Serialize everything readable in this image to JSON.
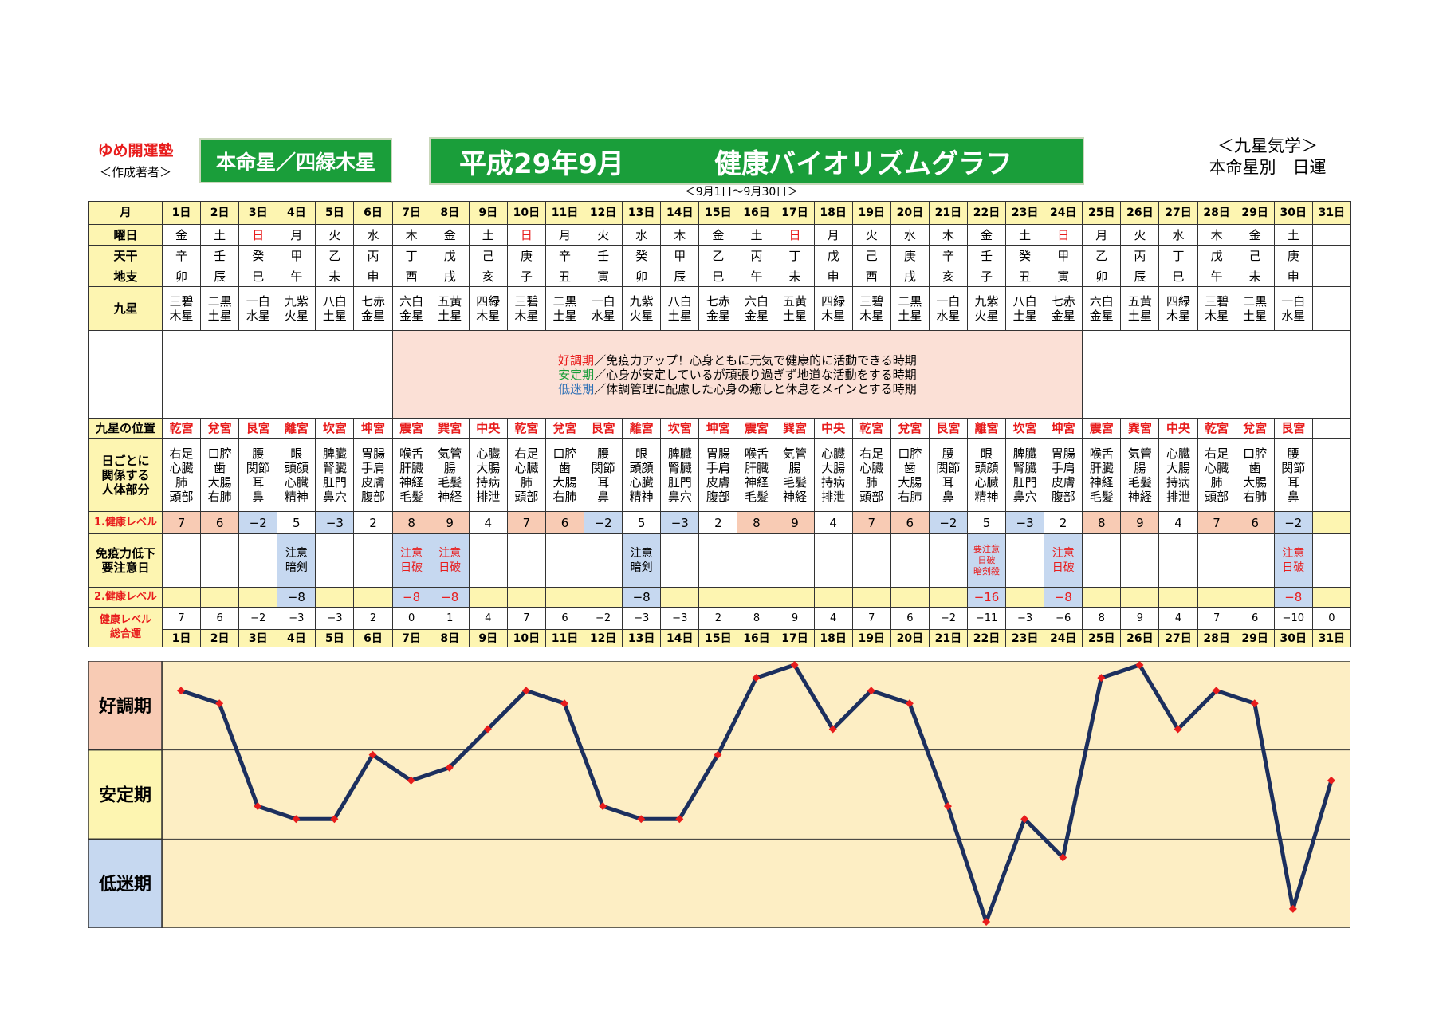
{
  "header": {
    "org_name": "ゆめ開運塾",
    "author_note": "＜作成著者＞",
    "honmei_sei": "本命星／四緑木星",
    "title_ym": "平成29年9月",
    "title_text": "健康バイオリズムグラフ",
    "period": "＜9月1日～9月30日＞",
    "kyusei_line1": "＜九星気学＞",
    "kyusei_line2": "本命星別　日運"
  },
  "colors": {
    "green": "#1a9e3a",
    "red": "#e81c1c",
    "pink": "#f8cbb4",
    "light_blue": "#c6d8f0",
    "yellow": "#fdf5b1",
    "line": "#1c2f5e",
    "marker": "#e81c1c"
  },
  "labels": {
    "month": "月",
    "weekday": "曜日",
    "tenkan": "天干",
    "chishi": "地支",
    "kyusei": "九星",
    "position": "九星の位置",
    "body_part_1": "日ごとに",
    "body_part_2": "関係する",
    "body_part_3": "人体部分",
    "health1": "1.健康レベル",
    "caution_1": "免疫力低下",
    "caution_2": "要注意日",
    "health2": "2.健康レベル",
    "total_1": "健康レベル",
    "total_2": "総合運"
  },
  "legend": [
    {
      "term": "好調期",
      "text": "／免疫力アップ！心身ともに元気で健康的に活動できる時期",
      "color": "#e81c1c"
    },
    {
      "term": "安定期",
      "text": "／心身が安定しているが頑張り過ぎず地道な活動をする時期",
      "color": "#1a9e3a"
    },
    {
      "term": "低迷期",
      "text": "／体調管理に配慮した心身の癒しと休息をメインとする時期",
      "color": "#2d6fb5"
    }
  ],
  "days": [
    "1日",
    "2日",
    "3日",
    "4日",
    "5日",
    "6日",
    "7日",
    "8日",
    "9日",
    "10日",
    "11日",
    "12日",
    "13日",
    "14日",
    "15日",
    "16日",
    "17日",
    "18日",
    "19日",
    "20日",
    "21日",
    "22日",
    "23日",
    "24日",
    "25日",
    "26日",
    "27日",
    "28日",
    "29日",
    "30日",
    "31日"
  ],
  "weekdays": [
    "金",
    "土",
    "日",
    "月",
    "火",
    "水",
    "木",
    "金",
    "土",
    "日",
    "月",
    "火",
    "水",
    "木",
    "金",
    "土",
    "日",
    "月",
    "火",
    "水",
    "木",
    "金",
    "土",
    "日",
    "月",
    "火",
    "水",
    "木",
    "金",
    "土",
    ""
  ],
  "tenkan": [
    "辛",
    "壬",
    "癸",
    "甲",
    "乙",
    "丙",
    "丁",
    "戊",
    "己",
    "庚",
    "辛",
    "壬",
    "癸",
    "甲",
    "乙",
    "丙",
    "丁",
    "戊",
    "己",
    "庚",
    "辛",
    "壬",
    "癸",
    "甲",
    "乙",
    "丙",
    "丁",
    "戊",
    "己",
    "庚",
    ""
  ],
  "chishi": [
    "卯",
    "辰",
    "巳",
    "午",
    "未",
    "申",
    "酉",
    "戌",
    "亥",
    "子",
    "丑",
    "寅",
    "卯",
    "辰",
    "巳",
    "午",
    "未",
    "申",
    "酉",
    "戌",
    "亥",
    "子",
    "丑",
    "寅",
    "卯",
    "辰",
    "巳",
    "午",
    "未",
    "申",
    ""
  ],
  "kyusei": [
    [
      "三碧",
      "木星"
    ],
    [
      "二黒",
      "土星"
    ],
    [
      "一白",
      "水星"
    ],
    [
      "九紫",
      "火星"
    ],
    [
      "八白",
      "土星"
    ],
    [
      "七赤",
      "金星"
    ],
    [
      "六白",
      "金星"
    ],
    [
      "五黄",
      "土星"
    ],
    [
      "四緑",
      "木星"
    ],
    [
      "三碧",
      "木星"
    ],
    [
      "二黒",
      "土星"
    ],
    [
      "一白",
      "水星"
    ],
    [
      "九紫",
      "火星"
    ],
    [
      "八白",
      "土星"
    ],
    [
      "七赤",
      "金星"
    ],
    [
      "六白",
      "金星"
    ],
    [
      "五黄",
      "土星"
    ],
    [
      "四緑",
      "木星"
    ],
    [
      "三碧",
      "木星"
    ],
    [
      "二黒",
      "土星"
    ],
    [
      "一白",
      "水星"
    ],
    [
      "九紫",
      "火星"
    ],
    [
      "八白",
      "土星"
    ],
    [
      "七赤",
      "金星"
    ],
    [
      "六白",
      "金星"
    ],
    [
      "五黄",
      "土星"
    ],
    [
      "四緑",
      "木星"
    ],
    [
      "三碧",
      "木星"
    ],
    [
      "二黒",
      "土星"
    ],
    [
      "一白",
      "水星"
    ],
    [
      "",
      ""
    ]
  ],
  "positions": [
    "乾宮",
    "兌宮",
    "艮宮",
    "離宮",
    "坎宮",
    "坤宮",
    "震宮",
    "巽宮",
    "中央",
    "乾宮",
    "兌宮",
    "艮宮",
    "離宮",
    "坎宮",
    "坤宮",
    "震宮",
    "巽宮",
    "中央",
    "乾宮",
    "兌宮",
    "艮宮",
    "離宮",
    "坎宮",
    "坤宮",
    "震宮",
    "巽宮",
    "中央",
    "乾宮",
    "兌宮",
    "艮宮",
    ""
  ],
  "body_parts": [
    [
      "右足",
      "心臓",
      "肺",
      "頭部"
    ],
    [
      "口腔",
      "歯",
      "大腸",
      "右肺"
    ],
    [
      "腰",
      "関節",
      "耳",
      "鼻"
    ],
    [
      "眼",
      "頭顔",
      "心臓",
      "精神"
    ],
    [
      "脾臓",
      "腎臓",
      "肛門",
      "鼻穴"
    ],
    [
      "胃腸",
      "手肩",
      "皮膚",
      "腹部"
    ],
    [
      "喉舌",
      "肝臓",
      "神経",
      "毛髪"
    ],
    [
      "気管",
      "腸",
      "毛髪",
      "神経"
    ],
    [
      "心臓",
      "大腸",
      "持病",
      "排泄"
    ],
    [
      "右足",
      "心臓",
      "肺",
      "頭部"
    ],
    [
      "口腔",
      "歯",
      "大腸",
      "右肺"
    ],
    [
      "腰",
      "関節",
      "耳",
      "鼻"
    ],
    [
      "眼",
      "頭顔",
      "心臓",
      "精神"
    ],
    [
      "脾臓",
      "腎臓",
      "肛門",
      "鼻穴"
    ],
    [
      "胃腸",
      "手肩",
      "皮膚",
      "腹部"
    ],
    [
      "喉舌",
      "肝臓",
      "神経",
      "毛髪"
    ],
    [
      "気管",
      "腸",
      "毛髪",
      "神経"
    ],
    [
      "心臓",
      "大腸",
      "持病",
      "排泄"
    ],
    [
      "右足",
      "心臓",
      "肺",
      "頭部"
    ],
    [
      "口腔",
      "歯",
      "大腸",
      "右肺"
    ],
    [
      "腰",
      "関節",
      "耳",
      "鼻"
    ],
    [
      "眼",
      "頭顔",
      "心臓",
      "精神"
    ],
    [
      "脾臓",
      "腎臓",
      "肛門",
      "鼻穴"
    ],
    [
      "胃腸",
      "手肩",
      "皮膚",
      "腹部"
    ],
    [
      "喉舌",
      "肝臓",
      "神経",
      "毛髪"
    ],
    [
      "気管",
      "腸",
      "毛髪",
      "神経"
    ],
    [
      "心臓",
      "大腸",
      "持病",
      "排泄"
    ],
    [
      "右足",
      "心臓",
      "肺",
      "頭部"
    ],
    [
      "口腔",
      "歯",
      "大腸",
      "右肺"
    ],
    [
      "腰",
      "関節",
      "耳",
      "鼻"
    ],
    [
      "",
      "",
      "",
      ""
    ]
  ],
  "health1": [
    "7",
    "6",
    "−2",
    "5",
    "−3",
    "2",
    "8",
    "9",
    "4",
    "7",
    "6",
    "−2",
    "5",
    "−3",
    "2",
    "8",
    "9",
    "4",
    "7",
    "6",
    "−2",
    "5",
    "−3",
    "2",
    "8",
    "9",
    "4",
    "7",
    "6",
    "−2",
    ""
  ],
  "caution": [
    "",
    "",
    "",
    "注意\n暗剣",
    "",
    "",
    "注意\n日破",
    "注意\n日破",
    "",
    "",
    "",
    "",
    "注意\n暗剣",
    "",
    "",
    "",
    "",
    "",
    "",
    "",
    "",
    "要注意\n日破\n暗剣殺",
    "",
    "注意\n日破",
    "",
    "",
    "",
    "",
    "",
    "注意\n日破",
    ""
  ],
  "health2": [
    "",
    "",
    "",
    "−8",
    "",
    "",
    "−8",
    "−8",
    "",
    "",
    "",
    "",
    "−8",
    "",
    "",
    "",
    "",
    "",
    "",
    "",
    "",
    "−16",
    "",
    "−8",
    "",
    "",
    "",
    "",
    "",
    "−8",
    ""
  ],
  "total": [
    "7",
    "6",
    "−2",
    "−3",
    "−3",
    "2",
    "0",
    "1",
    "4",
    "7",
    "6",
    "−2",
    "−3",
    "−3",
    "2",
    "8",
    "9",
    "4",
    "7",
    "6",
    "−2",
    "−11",
    "−3",
    "−6",
    "8",
    "9",
    "4",
    "7",
    "6",
    "−10",
    "0"
  ],
  "chart_data": {
    "type": "line",
    "x": [
      1,
      2,
      3,
      4,
      5,
      6,
      7,
      8,
      9,
      10,
      11,
      12,
      13,
      14,
      15,
      16,
      17,
      18,
      19,
      20,
      21,
      22,
      23,
      24,
      25,
      26,
      27,
      28,
      29,
      30,
      31
    ],
    "series": [
      {
        "values": [
          7,
          6,
          -2,
          -3,
          -3,
          2,
          0,
          1,
          4,
          7,
          6,
          -2,
          -3,
          -3,
          2,
          8,
          9,
          4,
          7,
          6,
          -2,
          -11,
          -3,
          -6,
          8,
          9,
          4,
          7,
          6,
          -10,
          0
        ]
      }
    ],
    "bands": [
      "好調期",
      "安定期",
      "低迷期"
    ],
    "ylim": [
      -11,
      9
    ],
    "grid": true
  }
}
